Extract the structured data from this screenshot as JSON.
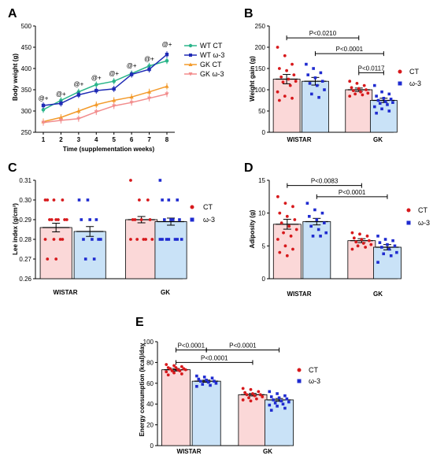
{
  "panels": [
    {
      "letter": "A",
      "type": "line",
      "xlabel": "Time (supplementation weeks)",
      "ylabel": "Body weight (g)",
      "ylim": [
        250,
        500
      ],
      "yticks": [
        250,
        300,
        350,
        400,
        450,
        500
      ],
      "x": [
        1,
        2,
        3,
        4,
        5,
        6,
        7,
        8
      ],
      "series": [
        {
          "name": "WT CT",
          "color": "#2ab58a",
          "marker": "circle",
          "values": [
            303,
            325,
            345,
            362,
            370,
            388,
            406,
            418
          ]
        },
        {
          "name": "WT ω-3",
          "color": "#1f2bb5",
          "marker": "square",
          "values": [
            313,
            318,
            338,
            348,
            352,
            386,
            398,
            433
          ]
        },
        {
          "name": "GK CT",
          "color": "#f39a2a",
          "marker": "triangle",
          "values": [
            275,
            285,
            300,
            315,
            325,
            333,
            345,
            358
          ]
        },
        {
          "name": "GK ω-3",
          "color": "#f28c8c",
          "marker": "triangle-down",
          "values": [
            273,
            278,
            282,
            298,
            312,
            320,
            330,
            340
          ]
        }
      ],
      "annotations": [
        {
          "x": 1,
          "y": 325,
          "text": "@+"
        },
        {
          "x": 2,
          "y": 335,
          "text": "@+"
        },
        {
          "x": 3,
          "y": 358,
          "text": "@+"
        },
        {
          "x": 4,
          "y": 373,
          "text": "@+"
        },
        {
          "x": 5,
          "y": 383,
          "text": "@+"
        },
        {
          "x": 6,
          "y": 402,
          "text": "@+"
        },
        {
          "x": 7,
          "y": 418,
          "text": "@+"
        },
        {
          "x": 8,
          "y": 452,
          "text": "@+"
        }
      ]
    },
    {
      "letter": "B",
      "type": "bar",
      "ylabel": "Weight gain (g)",
      "ylim": [
        0,
        250
      ],
      "yticks": [
        0,
        50,
        100,
        150,
        200,
        250
      ],
      "categories": [
        "WISTAR",
        "GK"
      ],
      "legend": [
        "CT",
        "ω-3"
      ],
      "series": [
        {
          "group": "WISTAR",
          "legend_index": 0,
          "mean": 125,
          "sem": 11,
          "points": [
            200,
            180,
            160,
            150,
            145,
            135,
            130,
            125,
            120,
            118,
            110,
            95,
            85,
            80,
            75
          ]
        },
        {
          "group": "WISTAR",
          "legend_index": 1,
          "mean": 120,
          "sem": 9,
          "points": [
            160,
            150,
            140,
            135,
            128,
            120,
            115,
            110,
            100,
            90,
            82
          ]
        },
        {
          "group": "GK",
          "legend_index": 0,
          "mean": 100,
          "sem": 4,
          "points": [
            120,
            115,
            110,
            105,
            103,
            100,
            98,
            95,
            92,
            90,
            88,
            85
          ]
        },
        {
          "group": "GK",
          "legend_index": 1,
          "mean": 75,
          "sem": 5,
          "points": [
            110,
            95,
            90,
            85,
            80,
            78,
            75,
            72,
            70,
            68,
            65,
            60,
            55,
            50,
            45
          ]
        }
      ],
      "brackets": [
        {
          "from": 0,
          "to": 2,
          "y": 222,
          "text": "P<0.0210"
        },
        {
          "from": 1,
          "to": 3,
          "y": 185,
          "text": "P<0.0001"
        },
        {
          "from": 2,
          "to": 3,
          "y": 140,
          "text": "P<0.0117"
        }
      ]
    },
    {
      "letter": "C",
      "type": "bar",
      "ylabel": "Lee index (g/cm³)",
      "ylim": [
        0.26,
        0.31
      ],
      "yticks": [
        0.26,
        0.27,
        0.28,
        0.29,
        0.3,
        0.31
      ],
      "categories": [
        "WISTAR",
        "GK"
      ],
      "legend": [
        "CT",
        "ω-3"
      ],
      "series": [
        {
          "group": "WISTAR",
          "legend_index": 0,
          "mean": 0.286,
          "sem": 0.0022,
          "points": [
            0.3,
            0.3,
            0.3,
            0.3,
            0.29,
            0.29,
            0.29,
            0.29,
            0.29,
            0.29,
            0.28,
            0.28,
            0.28,
            0.28,
            0.27,
            0.27
          ]
        },
        {
          "group": "WISTAR",
          "legend_index": 1,
          "mean": 0.284,
          "sem": 0.0025,
          "points": [
            0.3,
            0.3,
            0.29,
            0.29,
            0.29,
            0.28,
            0.28,
            0.28,
            0.28,
            0.27,
            0.27
          ]
        },
        {
          "group": "GK",
          "legend_index": 0,
          "mean": 0.29,
          "sem": 0.0016,
          "points": [
            0.31,
            0.3,
            0.3,
            0.29,
            0.29,
            0.29,
            0.29,
            0.28,
            0.28,
            0.28,
            0.28,
            0.28
          ]
        },
        {
          "group": "GK",
          "legend_index": 1,
          "mean": 0.289,
          "sem": 0.0018,
          "points": [
            0.31,
            0.3,
            0.3,
            0.3,
            0.29,
            0.29,
            0.29,
            0.29,
            0.28,
            0.28,
            0.28,
            0.28,
            0.28,
            0.28,
            0.28
          ]
        }
      ],
      "brackets": []
    },
    {
      "letter": "D",
      "type": "bar",
      "ylabel": "Adiposity (g)",
      "ylim": [
        0,
        15
      ],
      "yticks": [
        0,
        5,
        10,
        15
      ],
      "categories": [
        "WISTAR",
        "GK"
      ],
      "legend": [
        "CT",
        "ω-3"
      ],
      "series": [
        {
          "group": "WISTAR",
          "legend_index": 0,
          "mean": 8.3,
          "sem": 0.75,
          "points": [
            12.5,
            11.5,
            11,
            10,
            9.5,
            9,
            8.5,
            8,
            7.5,
            7,
            6.5,
            6,
            5,
            4.5,
            4,
            3.5
          ]
        },
        {
          "group": "WISTAR",
          "legend_index": 1,
          "mean": 8.7,
          "sem": 0.5,
          "points": [
            11.5,
            10.5,
            10,
            9.5,
            9,
            8.5,
            8,
            7.5,
            7,
            6.5,
            6.5
          ]
        },
        {
          "group": "GK",
          "legend_index": 0,
          "mean": 5.8,
          "sem": 0.3,
          "points": [
            7,
            6.8,
            6.5,
            6.2,
            6,
            5.8,
            5.6,
            5.4,
            5.2,
            5,
            4.8,
            4.5
          ]
        },
        {
          "group": "GK",
          "legend_index": 1,
          "mean": 4.8,
          "sem": 0.4,
          "points": [
            6.5,
            6,
            5.8,
            5.5,
            5.2,
            5,
            4.8,
            4.5,
            4,
            3.8,
            3.5,
            2.5
          ]
        }
      ],
      "brackets": [
        {
          "from": 0,
          "to": 2,
          "y": 14.2,
          "text": "P<0.0083"
        },
        {
          "from": 1,
          "to": 3,
          "y": 12.5,
          "text": "P<0.0001"
        }
      ]
    },
    {
      "letter": "E",
      "type": "bar",
      "ylabel": "Energy consumption (kcal)/day",
      "ylim": [
        0,
        100
      ],
      "yticks": [
        0,
        20,
        40,
        60,
        80,
        100
      ],
      "categories": [
        "WISTAR",
        "GK"
      ],
      "legend": [
        "CT",
        "ω-3"
      ],
      "series": [
        {
          "group": "WISTAR",
          "legend_index": 0,
          "mean": 73,
          "sem": 1.2,
          "points": [
            78,
            77,
            76,
            75,
            75,
            74,
            74,
            73,
            73,
            72,
            72,
            71,
            70,
            69,
            68
          ]
        },
        {
          "group": "WISTAR",
          "legend_index": 1,
          "mean": 62,
          "sem": 1,
          "points": [
            67,
            66,
            65,
            64,
            63,
            62,
            62,
            61,
            60,
            59,
            58,
            57
          ]
        },
        {
          "group": "GK",
          "legend_index": 0,
          "mean": 49,
          "sem": 1.2,
          "points": [
            55,
            54,
            52,
            51,
            50,
            49,
            49,
            48,
            47,
            46,
            45,
            44,
            43
          ]
        },
        {
          "group": "GK",
          "legend_index": 1,
          "mean": 44,
          "sem": 1.3,
          "points": [
            52,
            50,
            48,
            47,
            46,
            45,
            44,
            43,
            42,
            41,
            40,
            39,
            38,
            36,
            34
          ]
        }
      ],
      "brackets": [
        {
          "from": 0,
          "to": 1,
          "y": 92,
          "text": "P<0.0001"
        },
        {
          "from": 1,
          "to": 3,
          "y": 92,
          "text": "P<0.0001"
        },
        {
          "from": 0,
          "to": 2,
          "y": 80,
          "text": "P<0.0001"
        }
      ]
    }
  ],
  "colors": {
    "ct_fill": "#fbd8d8",
    "ct_marker": "#d7191c",
    "w3_fill": "#c9e2f7",
    "w3_marker": "#1f2bd0"
  }
}
